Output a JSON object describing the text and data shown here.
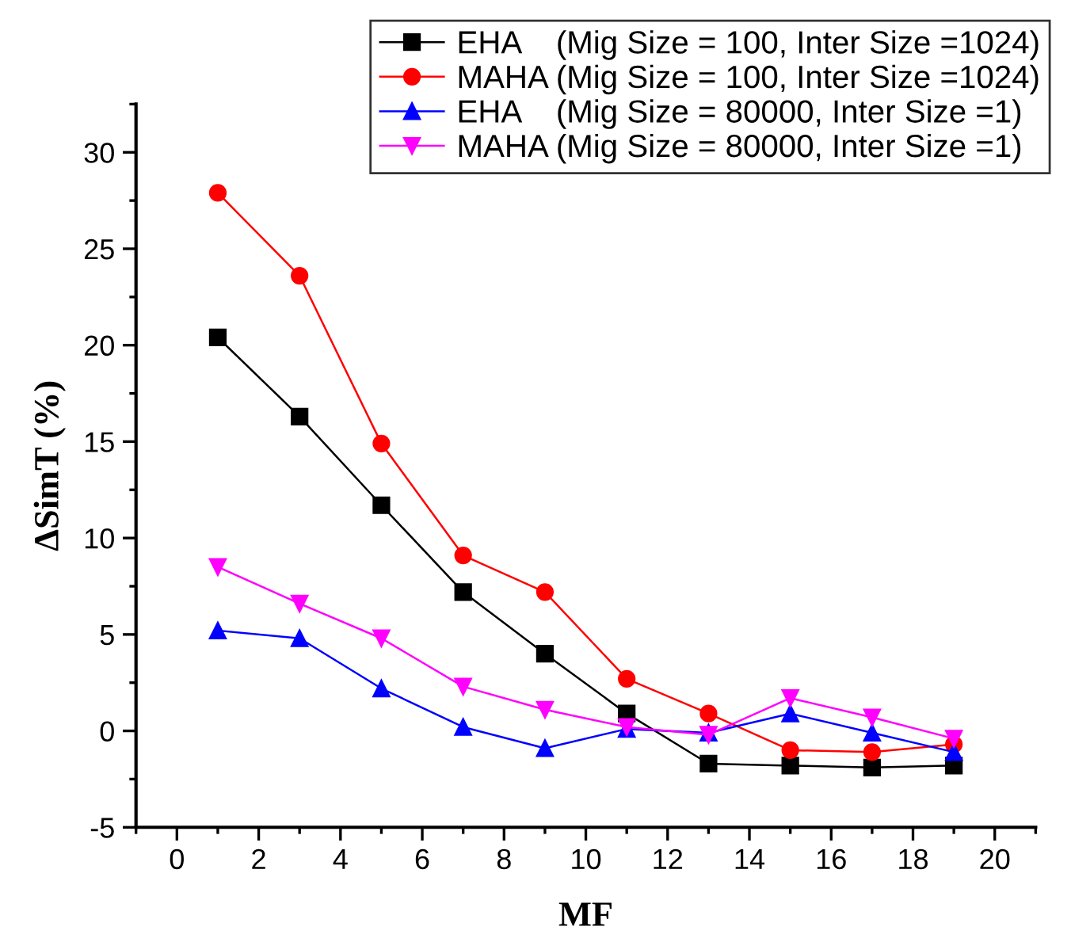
{
  "chart_data": {
    "type": "line",
    "xlabel": "MF",
    "ylabel": "ΔSimT (%)",
    "x": [
      1,
      3,
      5,
      7,
      9,
      11,
      13,
      15,
      17,
      19
    ],
    "xlim": [
      -1,
      21
    ],
    "xticks": [
      0,
      2,
      4,
      6,
      8,
      10,
      12,
      14,
      16,
      18,
      20
    ],
    "ylim": [
      -5,
      32.5
    ],
    "yticks": [
      -5,
      0,
      5,
      10,
      15,
      20,
      25,
      30
    ],
    "grid": false,
    "legend": "top right",
    "line_style": "solid",
    "series": [
      {
        "name": "EHA    (Mig Size = 100, Inter Size =1024)",
        "color": "#000000",
        "marker": "square",
        "values": [
          20.4,
          16.3,
          11.7,
          7.2,
          4.0,
          0.9,
          -1.7,
          -1.8,
          -1.9,
          -1.8
        ]
      },
      {
        "name": "MAHA (Mig Size = 100, Inter Size =1024)",
        "color": "#ff0000",
        "marker": "circle",
        "values": [
          27.9,
          23.6,
          14.9,
          9.1,
          7.2,
          2.7,
          0.9,
          -1.0,
          -1.1,
          -0.7
        ]
      },
      {
        "name": "EHA    (Mig Size = 80000, Inter Size =1)",
        "color": "#0000ff",
        "marker": "triangle",
        "values": [
          5.2,
          4.8,
          2.2,
          0.2,
          -0.9,
          0.1,
          -0.1,
          0.9,
          -0.1,
          -1.1
        ]
      },
      {
        "name": "MAHA (Mig Size = 80000, Inter Size =1)",
        "color": "#ff00ff",
        "marker": "triangle_down",
        "values": [
          8.5,
          6.6,
          4.8,
          2.3,
          1.1,
          0.2,
          -0.2,
          1.7,
          0.7,
          -0.4
        ]
      }
    ]
  }
}
